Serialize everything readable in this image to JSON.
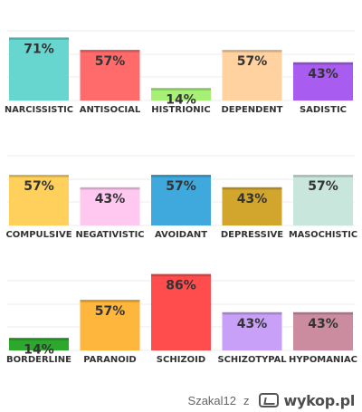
{
  "chart_data": [
    {
      "type": "bar",
      "categories": [
        "NARCISSISTIC",
        "ANTISOCIAL",
        "HISTRIONIC",
        "DEPENDENT",
        "SADISTIC"
      ],
      "values": [
        71,
        57,
        14,
        57,
        43
      ],
      "value_labels": [
        "71%",
        "57%",
        "14%",
        "57%",
        "43%"
      ],
      "colors": [
        "#66d6ce",
        "#ff6b6b",
        "#a6f075",
        "#ffd2a0",
        "#a85cf0"
      ],
      "ylim": [
        0,
        100
      ],
      "grid": true
    },
    {
      "type": "bar",
      "categories": [
        "COMPULSIVE",
        "NEGATIVISTIC",
        "AVOIDANT",
        "DEPRESSIVE",
        "MASOCHISTIC"
      ],
      "values": [
        57,
        43,
        57,
        43,
        57
      ],
      "value_labels": [
        "57%",
        "43%",
        "57%",
        "43%",
        "57%"
      ],
      "colors": [
        "#ffd15c",
        "#ffc8f0",
        "#3fa8dc",
        "#d2a52c",
        "#c8e6dc"
      ],
      "ylim": [
        0,
        100
      ],
      "grid": true
    },
    {
      "type": "bar",
      "categories": [
        "BORDERLINE",
        "PARANOID",
        "SCHIZOID",
        "SCHIZOTYPAL",
        "HYPOMANIAC"
      ],
      "values": [
        14,
        57,
        86,
        43,
        43
      ],
      "value_labels": [
        "14%",
        "57%",
        "86%",
        "43%",
        "43%"
      ],
      "colors": [
        "#2ca82c",
        "#ffb63c",
        "#ff4d4d",
        "#c8a0f8",
        "#cc8ca0"
      ],
      "ylim": [
        0,
        100
      ],
      "grid": true
    }
  ],
  "footer": {
    "user": "Szakal12",
    "separator": "z",
    "brand": "wykop.pl",
    "logo_icon": "wykop-logo-icon"
  }
}
